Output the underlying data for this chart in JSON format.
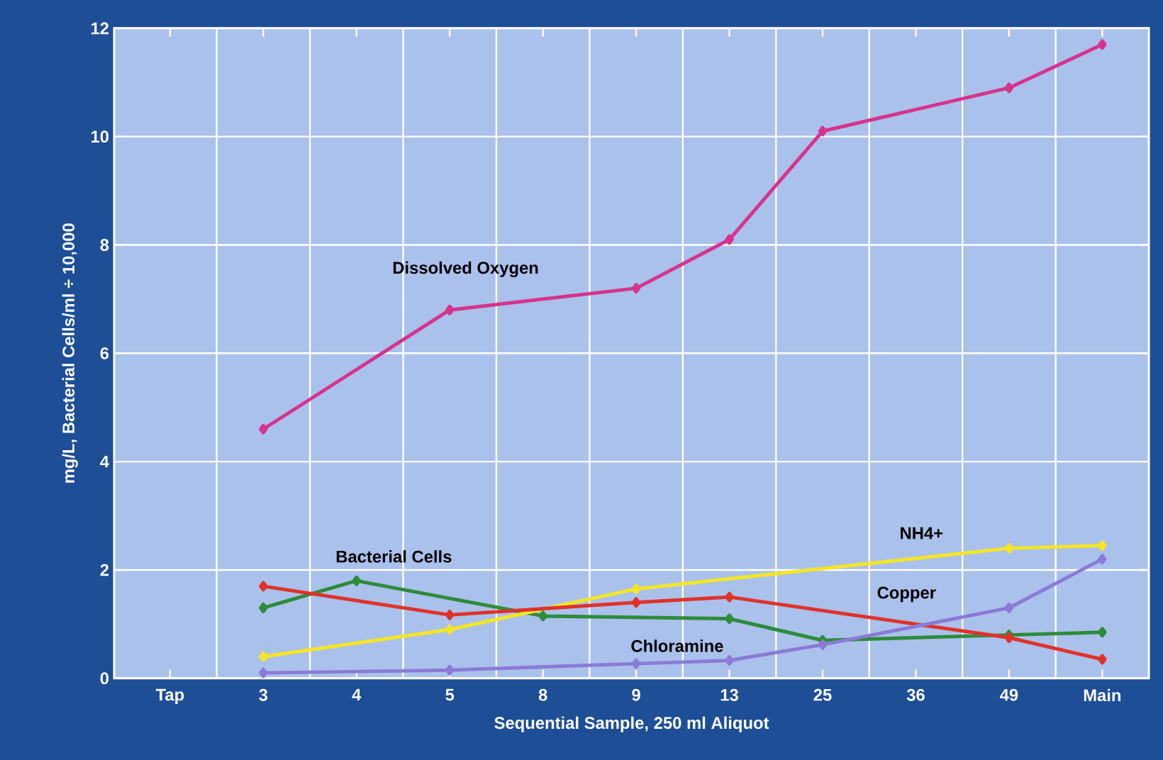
{
  "chart_data": {
    "type": "line",
    "xlabel": "Sequential Sample, 250 ml Aliquot",
    "ylabel": "mg/L, Bacterial Cells/ml ÷ 10,000",
    "categories": [
      "Tap",
      "3",
      "4",
      "5",
      "8",
      "9",
      "13",
      "25",
      "36",
      "49",
      "Main"
    ],
    "ylim": [
      0,
      12
    ],
    "yticks": [
      0,
      2,
      4,
      6,
      8,
      10,
      12
    ],
    "grid": true,
    "legend": false,
    "marker": "diamond",
    "line_style": "solid",
    "series": [
      {
        "name": "Dissolved Oxygen",
        "color": "#d6338f",
        "values": [
          null,
          4.6,
          null,
          6.8,
          null,
          7.2,
          8.1,
          10.1,
          null,
          10.9,
          11.7
        ]
      },
      {
        "name": "Bacterial Cells",
        "color": "#2e8b3a",
        "values": [
          null,
          1.3,
          1.8,
          null,
          1.15,
          null,
          1.1,
          0.7,
          null,
          0.8,
          0.85
        ]
      },
      {
        "name": "NH4+",
        "color": "#f5e625",
        "values": [
          null,
          0.4,
          null,
          0.9,
          null,
          1.65,
          null,
          null,
          null,
          2.4,
          2.45
        ]
      },
      {
        "name": "Copper",
        "color": "#e0322a",
        "values": [
          null,
          1.7,
          null,
          1.17,
          null,
          1.4,
          1.5,
          null,
          null,
          0.75,
          0.35
        ]
      },
      {
        "name": "Chloramine",
        "color": "#8a7bd6",
        "values": [
          null,
          0.1,
          null,
          0.15,
          null,
          0.27,
          0.33,
          0.62,
          null,
          1.3,
          2.2
        ]
      }
    ]
  }
}
